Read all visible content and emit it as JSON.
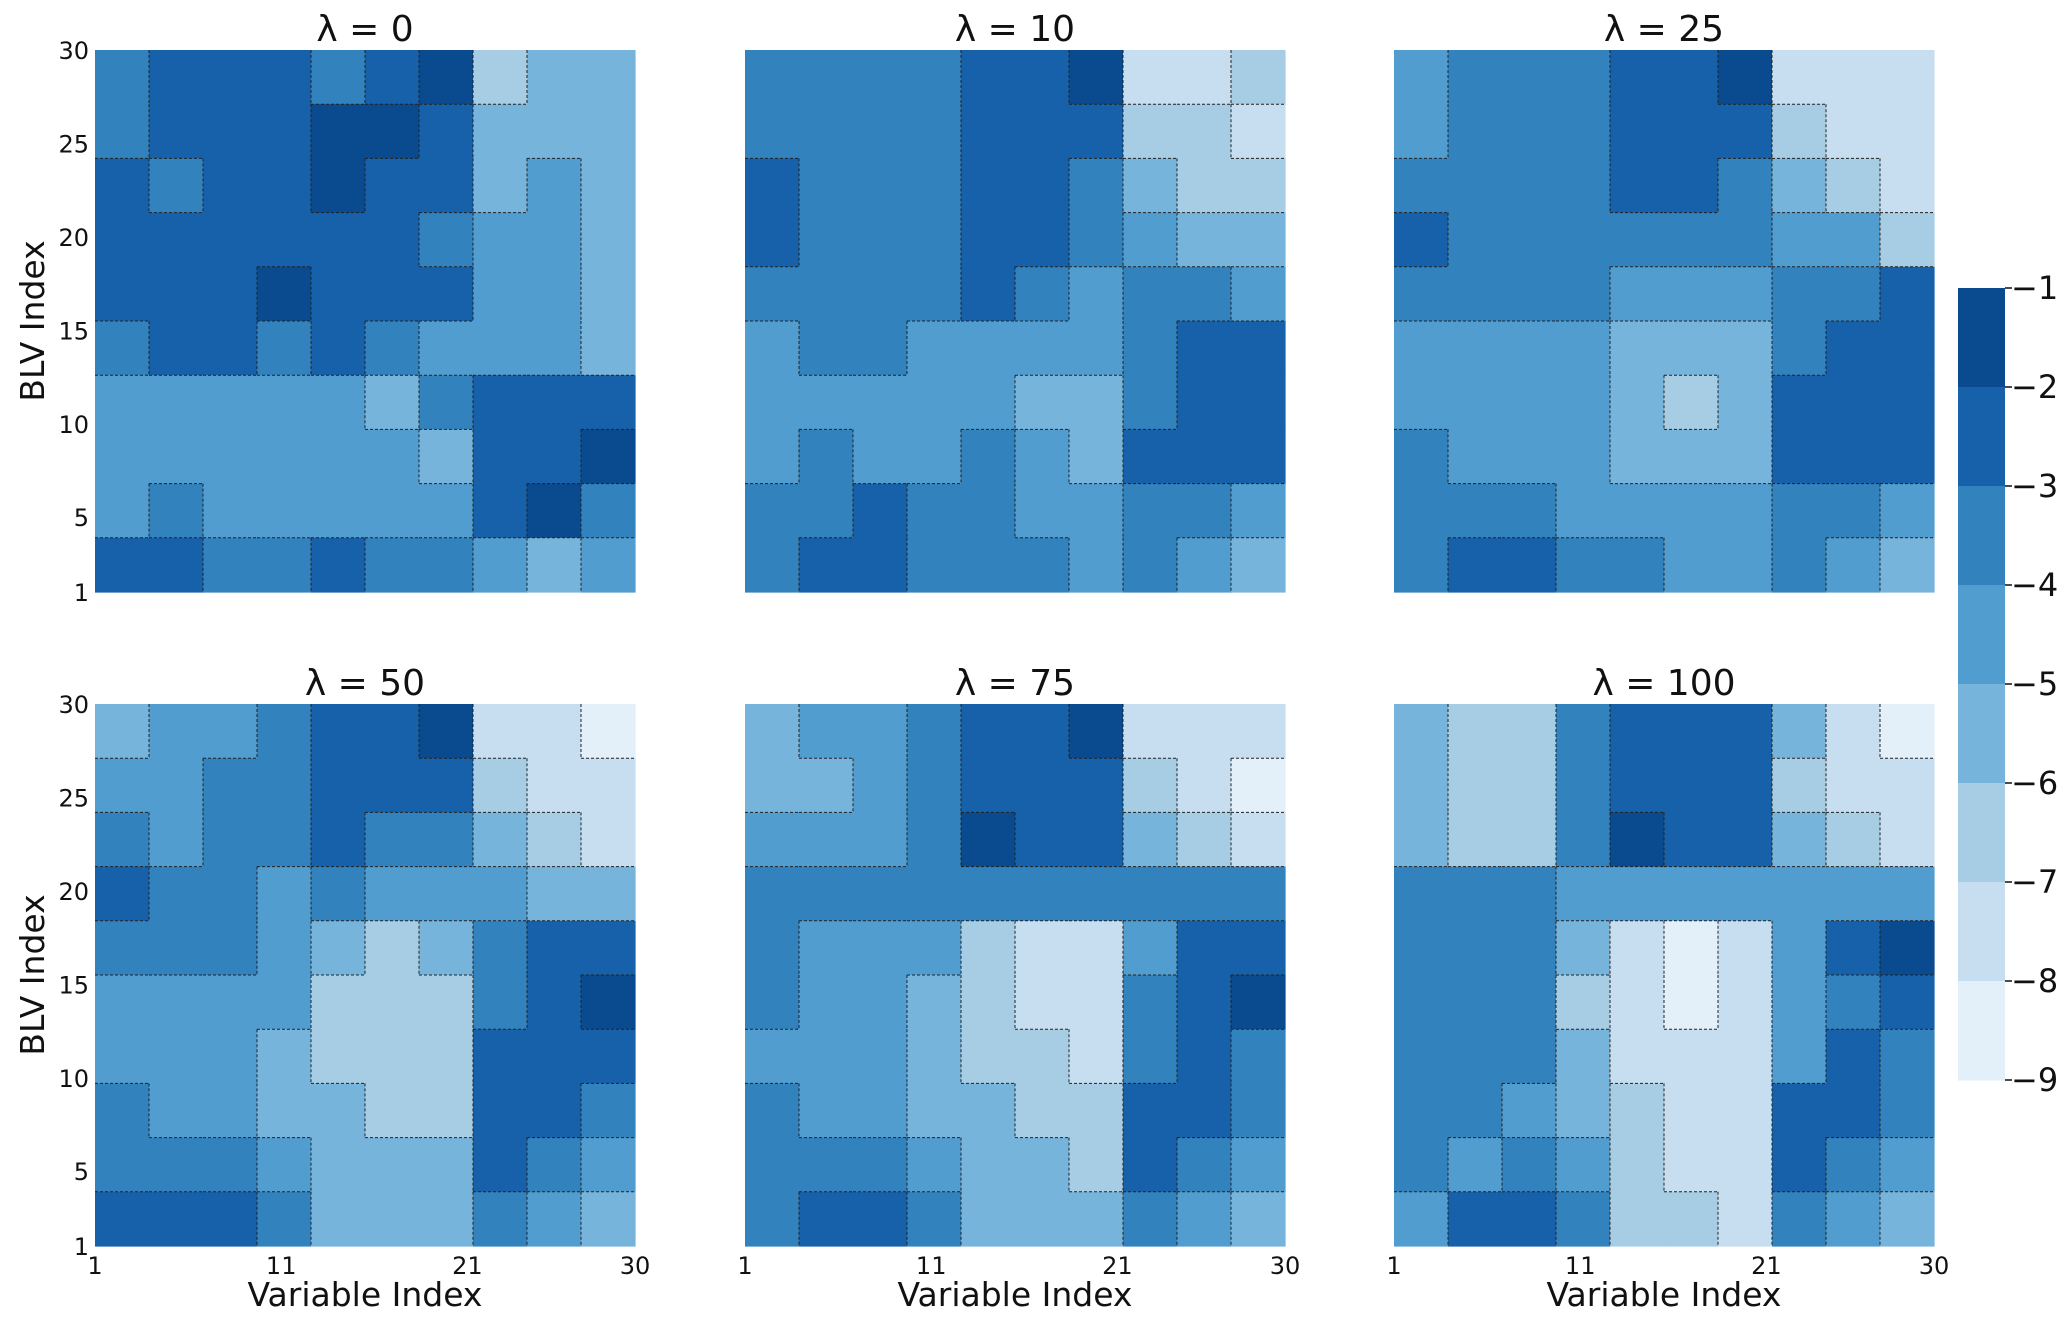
{
  "chart_data": {
    "type": "heatmap",
    "subtype": "filled-contour",
    "colormap": "Blues",
    "x_label": "Variable Index",
    "y_label": "BLV Index",
    "x_ticks": [
      1,
      11,
      21,
      30
    ],
    "y_ticks": [
      1,
      5,
      10,
      15,
      20,
      25,
      30
    ],
    "x_range": [
      1,
      30
    ],
    "y_range": [
      1,
      30
    ],
    "grid_note": "values estimated on a coarse 10x10 grid (3x3 index blocks), rows from BLV 30 down to 1, columns from variable 1 to 30",
    "colorbar": {
      "ticks": [
        "−1",
        "−2",
        "−3",
        "−4",
        "−5",
        "−6",
        "−7",
        "−8",
        "−9"
      ],
      "range": [
        -9,
        -1
      ],
      "levels": [
        -1,
        -2,
        -3,
        -4,
        -5,
        -6,
        -7,
        -8,
        -9
      ],
      "colors": [
        "#0a4a8f",
        "#1761aa",
        "#3282be",
        "#529dd0",
        "#77b4dc",
        "#a6cde4",
        "#c7def0",
        "#e3eff9"
      ],
      "placement": "right"
    },
    "panels": [
      {
        "title": "λ = 0",
        "values": [
          [
            -3.5,
            -2.5,
            -2.5,
            -2.5,
            -3.5,
            -2.5,
            -1.5,
            -6.5,
            -5.5,
            -5.5
          ],
          [
            -3.5,
            -2.5,
            -2.5,
            -2.5,
            -1.5,
            -1.5,
            -2.5,
            -5.5,
            -5.5,
            -5.5
          ],
          [
            -2.5,
            -3.5,
            -2.5,
            -2.5,
            -1.5,
            -2.5,
            -2.5,
            -5.5,
            -4.5,
            -5.5
          ],
          [
            -2.5,
            -2.5,
            -2.5,
            -2.5,
            -2.5,
            -2.5,
            -3.5,
            -4.5,
            -4.5,
            -5.5
          ],
          [
            -2.5,
            -2.5,
            -2.5,
            -1.5,
            -2.5,
            -2.5,
            -2.5,
            -4.5,
            -4.5,
            -5.5
          ],
          [
            -3.5,
            -2.5,
            -2.5,
            -3.5,
            -2.5,
            -3.5,
            -4.5,
            -4.5,
            -4.5,
            -5.5
          ],
          [
            -4.5,
            -4.5,
            -4.5,
            -4.5,
            -4.5,
            -5.5,
            -3.5,
            -2.5,
            -2.5,
            -2.5
          ],
          [
            -4.5,
            -4.5,
            -4.5,
            -4.5,
            -4.5,
            -4.5,
            -5.5,
            -2.5,
            -2.5,
            -1.5
          ],
          [
            -4.5,
            -3.5,
            -4.5,
            -4.5,
            -4.5,
            -4.5,
            -4.5,
            -2.5,
            -1.5,
            -3.5
          ],
          [
            -2.5,
            -2.5,
            -3.5,
            -3.5,
            -2.5,
            -3.5,
            -3.5,
            -4.5,
            -5.5,
            -4.5
          ]
        ]
      },
      {
        "title": "λ = 10",
        "values": [
          [
            -3.5,
            -3.5,
            -3.5,
            -3.5,
            -2.5,
            -2.5,
            -1.5,
            -7.5,
            -7.5,
            -6.5
          ],
          [
            -3.5,
            -3.5,
            -3.5,
            -3.5,
            -2.5,
            -2.5,
            -2.5,
            -6.5,
            -6.5,
            -7.5
          ],
          [
            -2.5,
            -3.5,
            -3.5,
            -3.5,
            -2.5,
            -2.5,
            -3.5,
            -5.5,
            -6.5,
            -6.5
          ],
          [
            -2.5,
            -3.5,
            -3.5,
            -3.5,
            -2.5,
            -2.5,
            -3.5,
            -4.5,
            -5.5,
            -5.5
          ],
          [
            -3.5,
            -3.5,
            -3.5,
            -3.5,
            -2.5,
            -3.5,
            -4.5,
            -3.5,
            -3.5,
            -4.5
          ],
          [
            -4.5,
            -3.5,
            -3.5,
            -4.5,
            -4.5,
            -4.5,
            -4.5,
            -3.5,
            -2.5,
            -2.5
          ],
          [
            -4.5,
            -4.5,
            -4.5,
            -4.5,
            -4.5,
            -5.5,
            -5.5,
            -3.5,
            -2.5,
            -2.5
          ],
          [
            -4.5,
            -3.5,
            -4.5,
            -4.5,
            -3.5,
            -4.5,
            -5.5,
            -2.5,
            -2.5,
            -2.5
          ],
          [
            -3.5,
            -3.5,
            -2.5,
            -3.5,
            -3.5,
            -4.5,
            -4.5,
            -3.5,
            -3.5,
            -4.5
          ],
          [
            -3.5,
            -2.5,
            -2.5,
            -3.5,
            -3.5,
            -3.5,
            -4.5,
            -3.5,
            -4.5,
            -5.5
          ]
        ]
      },
      {
        "title": "λ = 25",
        "values": [
          [
            -4.5,
            -3.5,
            -3.5,
            -3.5,
            -2.5,
            -2.5,
            -1.5,
            -7.5,
            -7.5,
            -7.5
          ],
          [
            -4.5,
            -3.5,
            -3.5,
            -3.5,
            -2.5,
            -2.5,
            -2.5,
            -6.5,
            -7.5,
            -7.5
          ],
          [
            -3.5,
            -3.5,
            -3.5,
            -3.5,
            -2.5,
            -2.5,
            -3.5,
            -5.5,
            -6.5,
            -7.5
          ],
          [
            -2.5,
            -3.5,
            -3.5,
            -3.5,
            -3.5,
            -3.5,
            -3.5,
            -4.5,
            -4.5,
            -6.5
          ],
          [
            -3.5,
            -3.5,
            -3.5,
            -3.5,
            -4.5,
            -4.5,
            -4.5,
            -3.5,
            -3.5,
            -2.5
          ],
          [
            -4.5,
            -4.5,
            -4.5,
            -4.5,
            -5.5,
            -5.5,
            -5.5,
            -3.5,
            -2.5,
            -2.5
          ],
          [
            -4.5,
            -4.5,
            -4.5,
            -4.5,
            -5.5,
            -6.5,
            -5.5,
            -2.5,
            -2.5,
            -2.5
          ],
          [
            -3.5,
            -4.5,
            -4.5,
            -4.5,
            -5.5,
            -5.5,
            -5.5,
            -2.5,
            -2.5,
            -2.5
          ],
          [
            -3.5,
            -3.5,
            -3.5,
            -4.5,
            -4.5,
            -4.5,
            -4.5,
            -3.5,
            -3.5,
            -4.5
          ],
          [
            -3.5,
            -2.5,
            -2.5,
            -3.5,
            -3.5,
            -4.5,
            -4.5,
            -3.5,
            -4.5,
            -5.5
          ]
        ]
      },
      {
        "title": "λ = 50",
        "values": [
          [
            -5.5,
            -4.5,
            -4.5,
            -3.5,
            -2.5,
            -2.5,
            -1.5,
            -7.5,
            -7.5,
            -8.5
          ],
          [
            -4.5,
            -4.5,
            -3.5,
            -3.5,
            -2.5,
            -2.5,
            -2.5,
            -6.5,
            -7.5,
            -7.5
          ],
          [
            -3.5,
            -4.5,
            -3.5,
            -3.5,
            -2.5,
            -3.5,
            -3.5,
            -5.5,
            -6.5,
            -7.5
          ],
          [
            -2.5,
            -3.5,
            -3.5,
            -4.5,
            -3.5,
            -4.5,
            -4.5,
            -4.5,
            -5.5,
            -5.5
          ],
          [
            -3.5,
            -3.5,
            -3.5,
            -4.5,
            -5.5,
            -6.5,
            -5.5,
            -3.5,
            -2.5,
            -2.5
          ],
          [
            -4.5,
            -4.5,
            -4.5,
            -4.5,
            -6.5,
            -6.5,
            -6.5,
            -3.5,
            -2.5,
            -1.5
          ],
          [
            -4.5,
            -4.5,
            -4.5,
            -5.5,
            -6.5,
            -6.5,
            -6.5,
            -2.5,
            -2.5,
            -2.5
          ],
          [
            -3.5,
            -4.5,
            -4.5,
            -5.5,
            -5.5,
            -6.5,
            -6.5,
            -2.5,
            -2.5,
            -3.5
          ],
          [
            -3.5,
            -3.5,
            -3.5,
            -4.5,
            -5.5,
            -5.5,
            -5.5,
            -2.5,
            -3.5,
            -4.5
          ],
          [
            -2.5,
            -2.5,
            -2.5,
            -3.5,
            -5.5,
            -5.5,
            -5.5,
            -3.5,
            -4.5,
            -5.5
          ]
        ]
      },
      {
        "title": "λ = 75",
        "values": [
          [
            -5.5,
            -4.5,
            -4.5,
            -3.5,
            -2.5,
            -2.5,
            -1.5,
            -7.5,
            -7.5,
            -7.5
          ],
          [
            -5.5,
            -5.5,
            -4.5,
            -3.5,
            -2.5,
            -2.5,
            -2.5,
            -6.5,
            -7.5,
            -8.5
          ],
          [
            -4.5,
            -4.5,
            -4.5,
            -3.5,
            -1.5,
            -2.5,
            -2.5,
            -5.5,
            -6.5,
            -7.5
          ],
          [
            -3.5,
            -3.5,
            -3.5,
            -3.5,
            -3.5,
            -3.5,
            -3.5,
            -3.5,
            -3.5,
            -3.5
          ],
          [
            -3.5,
            -4.5,
            -4.5,
            -4.5,
            -6.5,
            -7.5,
            -7.5,
            -4.5,
            -2.5,
            -2.5
          ],
          [
            -3.5,
            -4.5,
            -4.5,
            -5.5,
            -6.5,
            -7.5,
            -7.5,
            -3.5,
            -2.5,
            -1.5
          ],
          [
            -4.5,
            -4.5,
            -4.5,
            -5.5,
            -6.5,
            -6.5,
            -7.5,
            -3.5,
            -2.5,
            -3.5
          ],
          [
            -3.5,
            -4.5,
            -4.5,
            -5.5,
            -5.5,
            -6.5,
            -6.5,
            -2.5,
            -2.5,
            -3.5
          ],
          [
            -3.5,
            -3.5,
            -3.5,
            -4.5,
            -5.5,
            -5.5,
            -6.5,
            -2.5,
            -3.5,
            -4.5
          ],
          [
            -3.5,
            -2.5,
            -2.5,
            -3.5,
            -5.5,
            -5.5,
            -5.5,
            -3.5,
            -4.5,
            -5.5
          ]
        ]
      },
      {
        "title": "λ = 100",
        "values": [
          [
            -5.5,
            -6.5,
            -6.5,
            -3.5,
            -2.5,
            -2.5,
            -2.5,
            -5.5,
            -7.5,
            -8.5
          ],
          [
            -5.5,
            -6.5,
            -6.5,
            -3.5,
            -2.5,
            -2.5,
            -2.5,
            -6.5,
            -7.5,
            -7.5
          ],
          [
            -5.5,
            -6.5,
            -6.5,
            -3.5,
            -1.5,
            -2.5,
            -2.5,
            -5.5,
            -6.5,
            -7.5
          ],
          [
            -3.5,
            -3.5,
            -3.5,
            -4.5,
            -4.5,
            -4.5,
            -4.5,
            -4.5,
            -4.5,
            -4.5
          ],
          [
            -3.5,
            -3.5,
            -3.5,
            -5.5,
            -7.5,
            -8.5,
            -7.5,
            -4.5,
            -2.5,
            -1.5
          ],
          [
            -3.5,
            -3.5,
            -3.5,
            -6.5,
            -7.5,
            -8.5,
            -7.5,
            -4.5,
            -3.5,
            -2.5
          ],
          [
            -3.5,
            -3.5,
            -3.5,
            -5.5,
            -7.5,
            -7.5,
            -7.5,
            -4.5,
            -2.5,
            -3.5
          ],
          [
            -3.5,
            -3.5,
            -4.5,
            -5.5,
            -6.5,
            -7.5,
            -7.5,
            -2.5,
            -2.5,
            -3.5
          ],
          [
            -3.5,
            -4.5,
            -3.5,
            -4.5,
            -6.5,
            -7.5,
            -7.5,
            -2.5,
            -3.5,
            -4.5
          ],
          [
            -4.5,
            -2.5,
            -2.5,
            -3.5,
            -6.5,
            -6.5,
            -7.5,
            -3.5,
            -4.5,
            -5.5
          ]
        ]
      }
    ]
  }
}
